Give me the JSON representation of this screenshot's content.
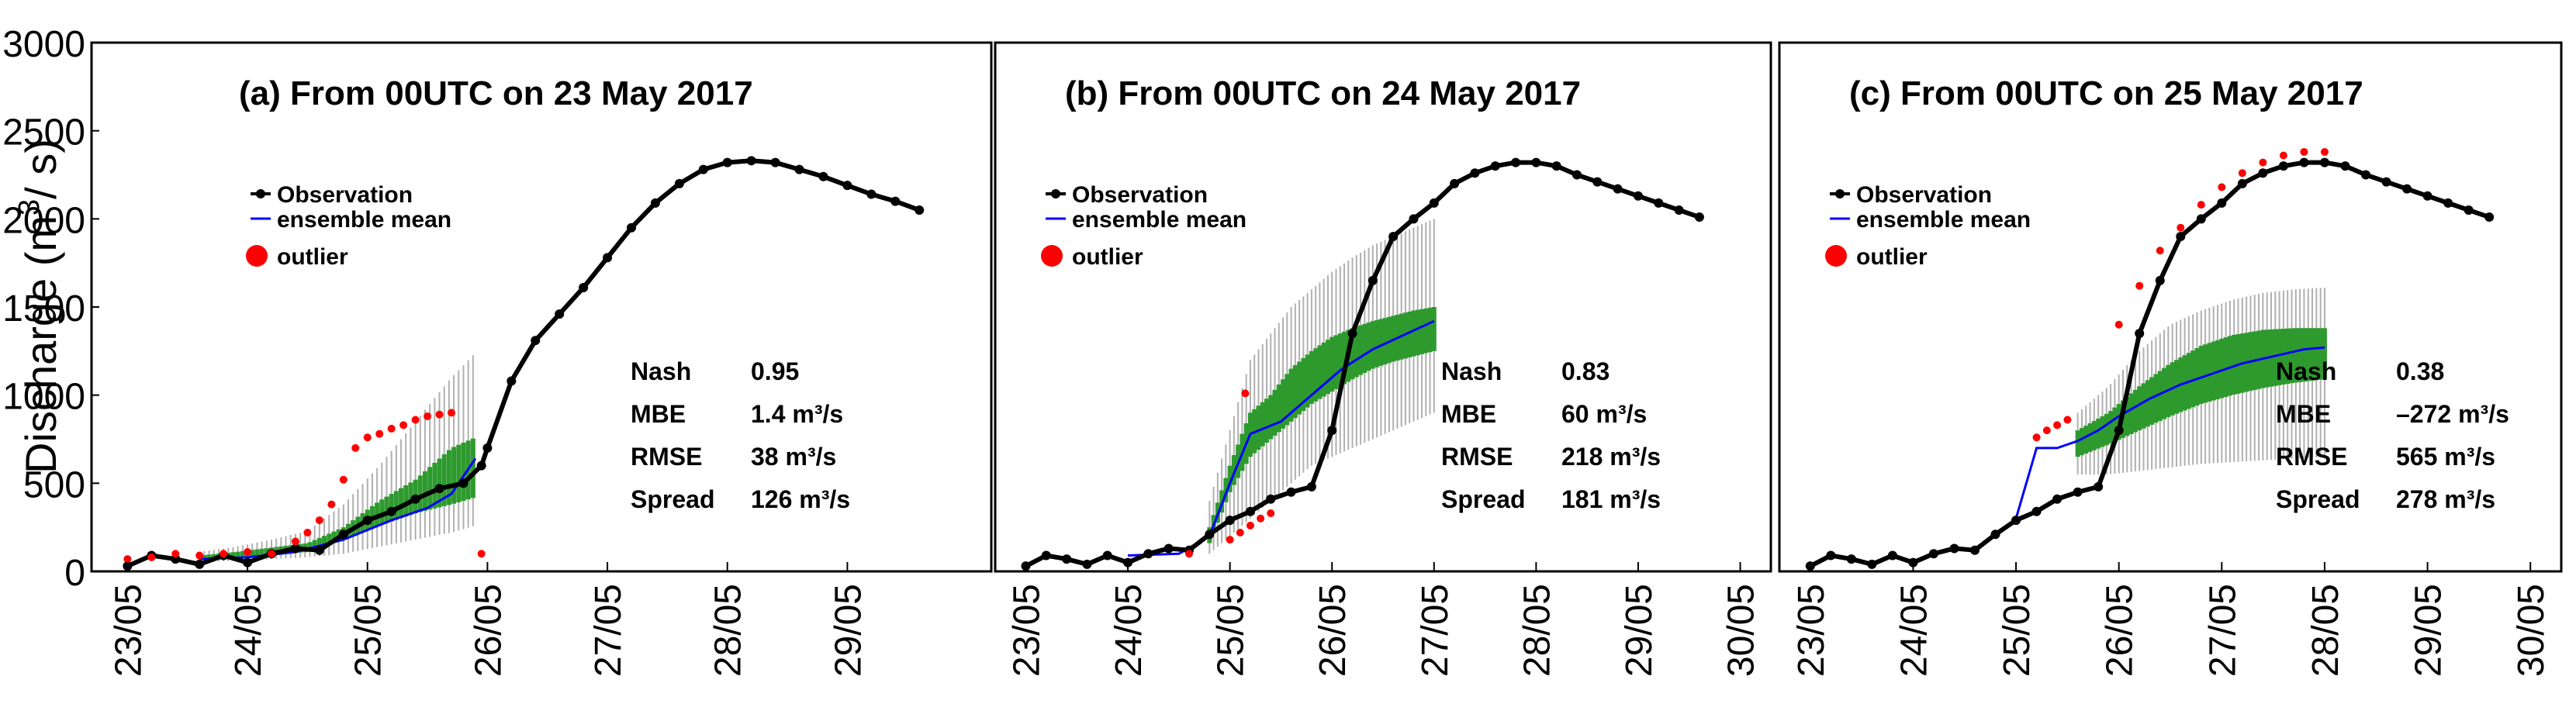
{
  "figure": {
    "y_axis_label": "Discharge (m",
    "y_axis_label_sup": "3",
    "y_axis_label_end": "/ s)",
    "y_ticks": [
      "0",
      "500",
      "1000",
      "1500",
      "2000",
      "2500",
      "3000"
    ],
    "colors": {
      "observation": "#000000",
      "ensemble_mean": "#0000ff",
      "outlier": "#ff0000",
      "ensemble_box": "#2e9a2e",
      "ensemble_whisker": "#b0b0b0",
      "frame": "#000000"
    }
  },
  "chart_data": [
    {
      "type": "line",
      "title": "(a) From 00UTC on 23 May 2017",
      "xlabel": "",
      "ylabel": "Discharge (m3/s)",
      "ylim": [
        0,
        3000
      ],
      "x_unit": "days since 00UTC 23 May 2017",
      "xlim": [
        -0.3,
        7.2
      ],
      "tick_positions": [
        0,
        1,
        2,
        3,
        4,
        5,
        6
      ],
      "tick_labels": [
        "23/05",
        "24/05",
        "25/05",
        "26/05",
        "27/05",
        "28/05",
        "29/05"
      ],
      "legend": [
        {
          "key": "observation",
          "label": "Observation"
        },
        {
          "key": "ensemble_mean",
          "label": "ensemble mean"
        },
        {
          "key": "outlier",
          "label": "outlier"
        }
      ],
      "stats": [
        {
          "name": "Nash",
          "value": "0.95"
        },
        {
          "name": "MBE",
          "value": "1.4 m³/s"
        },
        {
          "name": "RMSE",
          "value": "38 m³/s"
        },
        {
          "name": "Spread",
          "value": "126 m³/s"
        }
      ],
      "observation": {
        "x": [
          0,
          0.2,
          0.4,
          0.6,
          0.8,
          1.0,
          1.2,
          1.4,
          1.6,
          1.8,
          2.0,
          2.2,
          2.4,
          2.6,
          2.8,
          2.95,
          3.0,
          3.2,
          3.4,
          3.6,
          3.8,
          4.0,
          4.2,
          4.4,
          4.6,
          4.8,
          5.0,
          5.2,
          5.4,
          5.6,
          5.8,
          6.0,
          6.2,
          6.4,
          6.6
        ],
        "y": [
          30,
          90,
          70,
          40,
          90,
          50,
          100,
          130,
          120,
          210,
          290,
          340,
          410,
          470,
          500,
          600,
          700,
          1080,
          1310,
          1460,
          1610,
          1780,
          1950,
          2090,
          2200,
          2280,
          2320,
          2330,
          2320,
          2280,
          2240,
          2190,
          2140,
          2100,
          2050
        ]
      },
      "ensemble_mean": {
        "x": [
          0.6,
          1.0,
          1.4,
          1.8,
          2.2,
          2.5,
          2.7,
          2.9
        ],
        "y": [
          70,
          80,
          110,
          180,
          290,
          360,
          440,
          640
        ]
      },
      "outlier_upper": {
        "x": [
          1.4,
          1.5,
          1.6,
          1.7,
          1.8,
          1.9,
          2.0,
          2.1,
          2.2,
          2.3,
          2.4,
          2.5,
          2.6,
          2.7
        ],
        "y": [
          170,
          220,
          290,
          380,
          520,
          700,
          760,
          780,
          810,
          830,
          860,
          880,
          890,
          900
        ]
      },
      "outlier_misc": {
        "x": [
          0.0,
          0.2,
          0.4,
          0.6,
          0.8,
          1.0,
          1.2,
          2.95
        ],
        "y": [
          70,
          80,
          100,
          90,
          100,
          110,
          100,
          100
        ]
      },
      "ensemble_spread": {
        "x": [
          0.6,
          0.9,
          1.2,
          1.5,
          1.8,
          2.1,
          2.4,
          2.7,
          2.9
        ],
        "q1": [
          70,
          80,
          95,
          110,
          180,
          260,
          330,
          380,
          420
        ],
        "q3": [
          90,
          110,
          135,
          160,
          250,
          400,
          520,
          700,
          760
        ],
        "lo": [
          50,
          60,
          70,
          80,
          100,
          140,
          180,
          220,
          260
        ],
        "hi": [
          110,
          140,
          180,
          230,
          380,
          600,
          850,
          1100,
          1240
        ]
      }
    },
    {
      "type": "line",
      "title": "(b) From 00UTC on 24 May 2017",
      "xlabel": "",
      "ylabel": "Discharge (m3/s)",
      "ylim": [
        0,
        3000
      ],
      "x_unit": "days since 00UTC 23 May 2017",
      "xlim": [
        -0.3,
        7.3
      ],
      "tick_positions": [
        0,
        1,
        2,
        3,
        4,
        5,
        6,
        7
      ],
      "tick_labels": [
        "23/05",
        "24/05",
        "25/05",
        "26/05",
        "27/05",
        "28/05",
        "29/05",
        "30/05"
      ],
      "legend": [
        {
          "key": "observation",
          "label": "Observation"
        },
        {
          "key": "ensemble_mean",
          "label": "ensemble mean"
        },
        {
          "key": "outlier",
          "label": "outlier"
        }
      ],
      "stats": [
        {
          "name": "Nash",
          "value": "0.83"
        },
        {
          "name": "MBE",
          "value": "60 m³/s"
        },
        {
          "name": "RMSE",
          "value": "218 m³/s"
        },
        {
          "name": "Spread",
          "value": "181 m³/s"
        }
      ],
      "observation": {
        "x": [
          0,
          0.2,
          0.4,
          0.6,
          0.8,
          1.0,
          1.2,
          1.4,
          1.6,
          1.8,
          2.0,
          2.2,
          2.4,
          2.6,
          2.8,
          3.0,
          3.2,
          3.4,
          3.6,
          3.8,
          4.0,
          4.2,
          4.4,
          4.6,
          4.8,
          5.0,
          5.2,
          5.4,
          5.6,
          5.8,
          6.0,
          6.2,
          6.4,
          6.6
        ],
        "y": [
          30,
          90,
          70,
          40,
          90,
          50,
          100,
          130,
          120,
          210,
          290,
          340,
          410,
          450,
          480,
          800,
          1350,
          1650,
          1900,
          2000,
          2090,
          2200,
          2260,
          2300,
          2320,
          2320,
          2300,
          2250,
          2210,
          2170,
          2130,
          2090,
          2050,
          2010
        ]
      },
      "ensemble_mean": {
        "x": [
          1.0,
          1.5,
          1.8,
          2.0,
          2.2,
          2.5,
          2.8,
          3.1,
          3.4,
          3.7,
          4.0
        ],
        "y": [
          90,
          100,
          200,
          500,
          780,
          850,
          1000,
          1150,
          1260,
          1340,
          1420
        ]
      },
      "outlier_upper": {
        "x": [
          2.15
        ],
        "y": [
          1010
        ]
      },
      "outlier_misc": {
        "x": [
          1.6,
          2.0,
          2.1,
          2.2,
          2.3,
          2.4
        ],
        "y": [
          100,
          180,
          220,
          260,
          300,
          330
        ]
      },
      "ensemble_spread": {
        "x": [
          1.8,
          2.0,
          2.2,
          2.4,
          2.6,
          2.8,
          3.0,
          3.2,
          3.4,
          3.6,
          3.8,
          4.0
        ],
        "q1": [
          160,
          450,
          650,
          750,
          850,
          950,
          1020,
          1090,
          1150,
          1190,
          1220,
          1250
        ],
        "q3": [
          250,
          600,
          900,
          1000,
          1150,
          1250,
          1330,
          1380,
          1420,
          1450,
          1480,
          1500
        ],
        "lo": [
          100,
          200,
          300,
          400,
          500,
          600,
          650,
          700,
          750,
          800,
          850,
          900
        ],
        "hi": [
          400,
          800,
          1200,
          1350,
          1500,
          1600,
          1700,
          1780,
          1850,
          1900,
          1950,
          2000
        ]
      }
    },
    {
      "type": "line",
      "title": "(c) From 00UTC on 25 May 2017",
      "xlabel": "",
      "ylabel": "Discharge (m3/s)",
      "ylim": [
        0,
        3000
      ],
      "x_unit": "days since 00UTC 23 May 2017",
      "xlim": [
        -0.3,
        7.3
      ],
      "tick_positions": [
        0,
        1,
        2,
        3,
        4,
        5,
        6,
        7
      ],
      "tick_labels": [
        "23/05",
        "24/05",
        "25/05",
        "26/05",
        "27/05",
        "28/05",
        "29/05",
        "30/05"
      ],
      "legend": [
        {
          "key": "observation",
          "label": "Observation"
        },
        {
          "key": "ensemble_mean",
          "label": "ensemble mean"
        },
        {
          "key": "outlier",
          "label": "outlier"
        }
      ],
      "stats": [
        {
          "name": "Nash",
          "value": "0.38"
        },
        {
          "name": "MBE",
          "value": "–272 m³/s"
        },
        {
          "name": "RMSE",
          "value": "565 m³/s"
        },
        {
          "name": "Spread",
          "value": "278 m³/s"
        }
      ],
      "observation": {
        "x": [
          0,
          0.2,
          0.4,
          0.6,
          0.8,
          1.0,
          1.2,
          1.4,
          1.6,
          1.8,
          2.0,
          2.2,
          2.4,
          2.6,
          2.8,
          3.0,
          3.2,
          3.4,
          3.6,
          3.8,
          4.0,
          4.2,
          4.4,
          4.6,
          4.8,
          5.0,
          5.2,
          5.4,
          5.6,
          5.8,
          6.0,
          6.2,
          6.4,
          6.6
        ],
        "y": [
          30,
          90,
          70,
          40,
          90,
          50,
          100,
          130,
          120,
          210,
          290,
          340,
          410,
          450,
          480,
          800,
          1350,
          1650,
          1900,
          2000,
          2090,
          2200,
          2260,
          2300,
          2320,
          2320,
          2300,
          2250,
          2210,
          2170,
          2130,
          2090,
          2050,
          2010
        ]
      },
      "ensemble_mean": {
        "x": [
          2.0,
          2.2,
          2.4,
          2.6,
          2.8,
          3.0,
          3.3,
          3.6,
          3.9,
          4.2,
          4.5,
          4.8,
          5.0
        ],
        "y": [
          300,
          700,
          700,
          740,
          800,
          880,
          980,
          1060,
          1120,
          1180,
          1220,
          1260,
          1270
        ]
      },
      "outlier_upper": {
        "x": [
          2.2,
          2.3,
          2.4,
          2.5,
          3.0,
          3.2,
          3.4,
          3.6,
          3.8,
          4.0,
          4.2,
          4.4,
          4.6,
          4.8,
          5.0
        ],
        "y": [
          760,
          800,
          830,
          860,
          1400,
          1620,
          1820,
          1950,
          2080,
          2180,
          2260,
          2320,
          2360,
          2380,
          2380
        ]
      },
      "outlier_misc": {
        "x": [],
        "y": []
      },
      "ensemble_spread": {
        "x": [
          2.6,
          2.9,
          3.2,
          3.5,
          3.8,
          4.1,
          4.4,
          4.7,
          5.0
        ],
        "q1": [
          650,
          720,
          800,
          880,
          950,
          1000,
          1040,
          1070,
          1090
        ],
        "q3": [
          800,
          900,
          1050,
          1180,
          1280,
          1340,
          1370,
          1380,
          1380
        ],
        "lo": [
          550,
          550,
          570,
          590,
          610,
          620,
          630,
          640,
          650
        ],
        "hi": [
          900,
          1050,
          1250,
          1400,
          1480,
          1540,
          1580,
          1600,
          1610
        ]
      }
    }
  ]
}
